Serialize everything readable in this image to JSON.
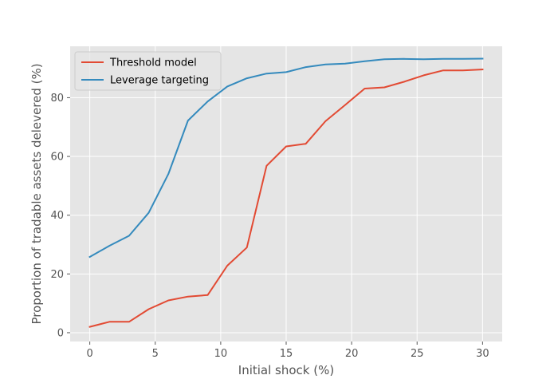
{
  "chart_data": {
    "type": "line",
    "xlabel": "Initial shock (%)",
    "ylabel": "Proportion of tradable assets delevered (%)",
    "xlim": [
      -1.5,
      31.5
    ],
    "ylim": [
      -3,
      97.5
    ],
    "xticks": [
      0,
      5,
      10,
      15,
      20,
      25,
      30
    ],
    "yticks": [
      0,
      20,
      40,
      60,
      80
    ],
    "grid": true,
    "legend": "top-left",
    "x": [
      0,
      1.5,
      3,
      4.5,
      6,
      7.5,
      9,
      10.5,
      12,
      13.5,
      15,
      16.5,
      18,
      19.5,
      21,
      22.5,
      24,
      25.5,
      27,
      28.5,
      30
    ],
    "series": [
      {
        "name": "Threshold model",
        "color": "#E24A33",
        "values": [
          2,
          3.7,
          3.7,
          8,
          11,
          12.3,
          12.8,
          22.8,
          29,
          56.8,
          63.4,
          64.3,
          72,
          77.5,
          83.1,
          83.5,
          85.4,
          87.6,
          89.3,
          89.3,
          89.6
        ]
      },
      {
        "name": "Leverage targeting",
        "color": "#348ABD",
        "values": [
          25.8,
          29.6,
          33,
          40.8,
          54,
          72.2,
          78.7,
          83.8,
          86.6,
          88.2,
          88.7,
          90.4,
          91.3,
          91.6,
          92.4,
          93.1,
          93.2,
          93.1,
          93.2,
          93.2,
          93.3
        ]
      }
    ]
  },
  "style": {
    "plot_bg": "#E5E5E5",
    "grid_color": "#FFFFFF",
    "tick_color": "#555555"
  }
}
